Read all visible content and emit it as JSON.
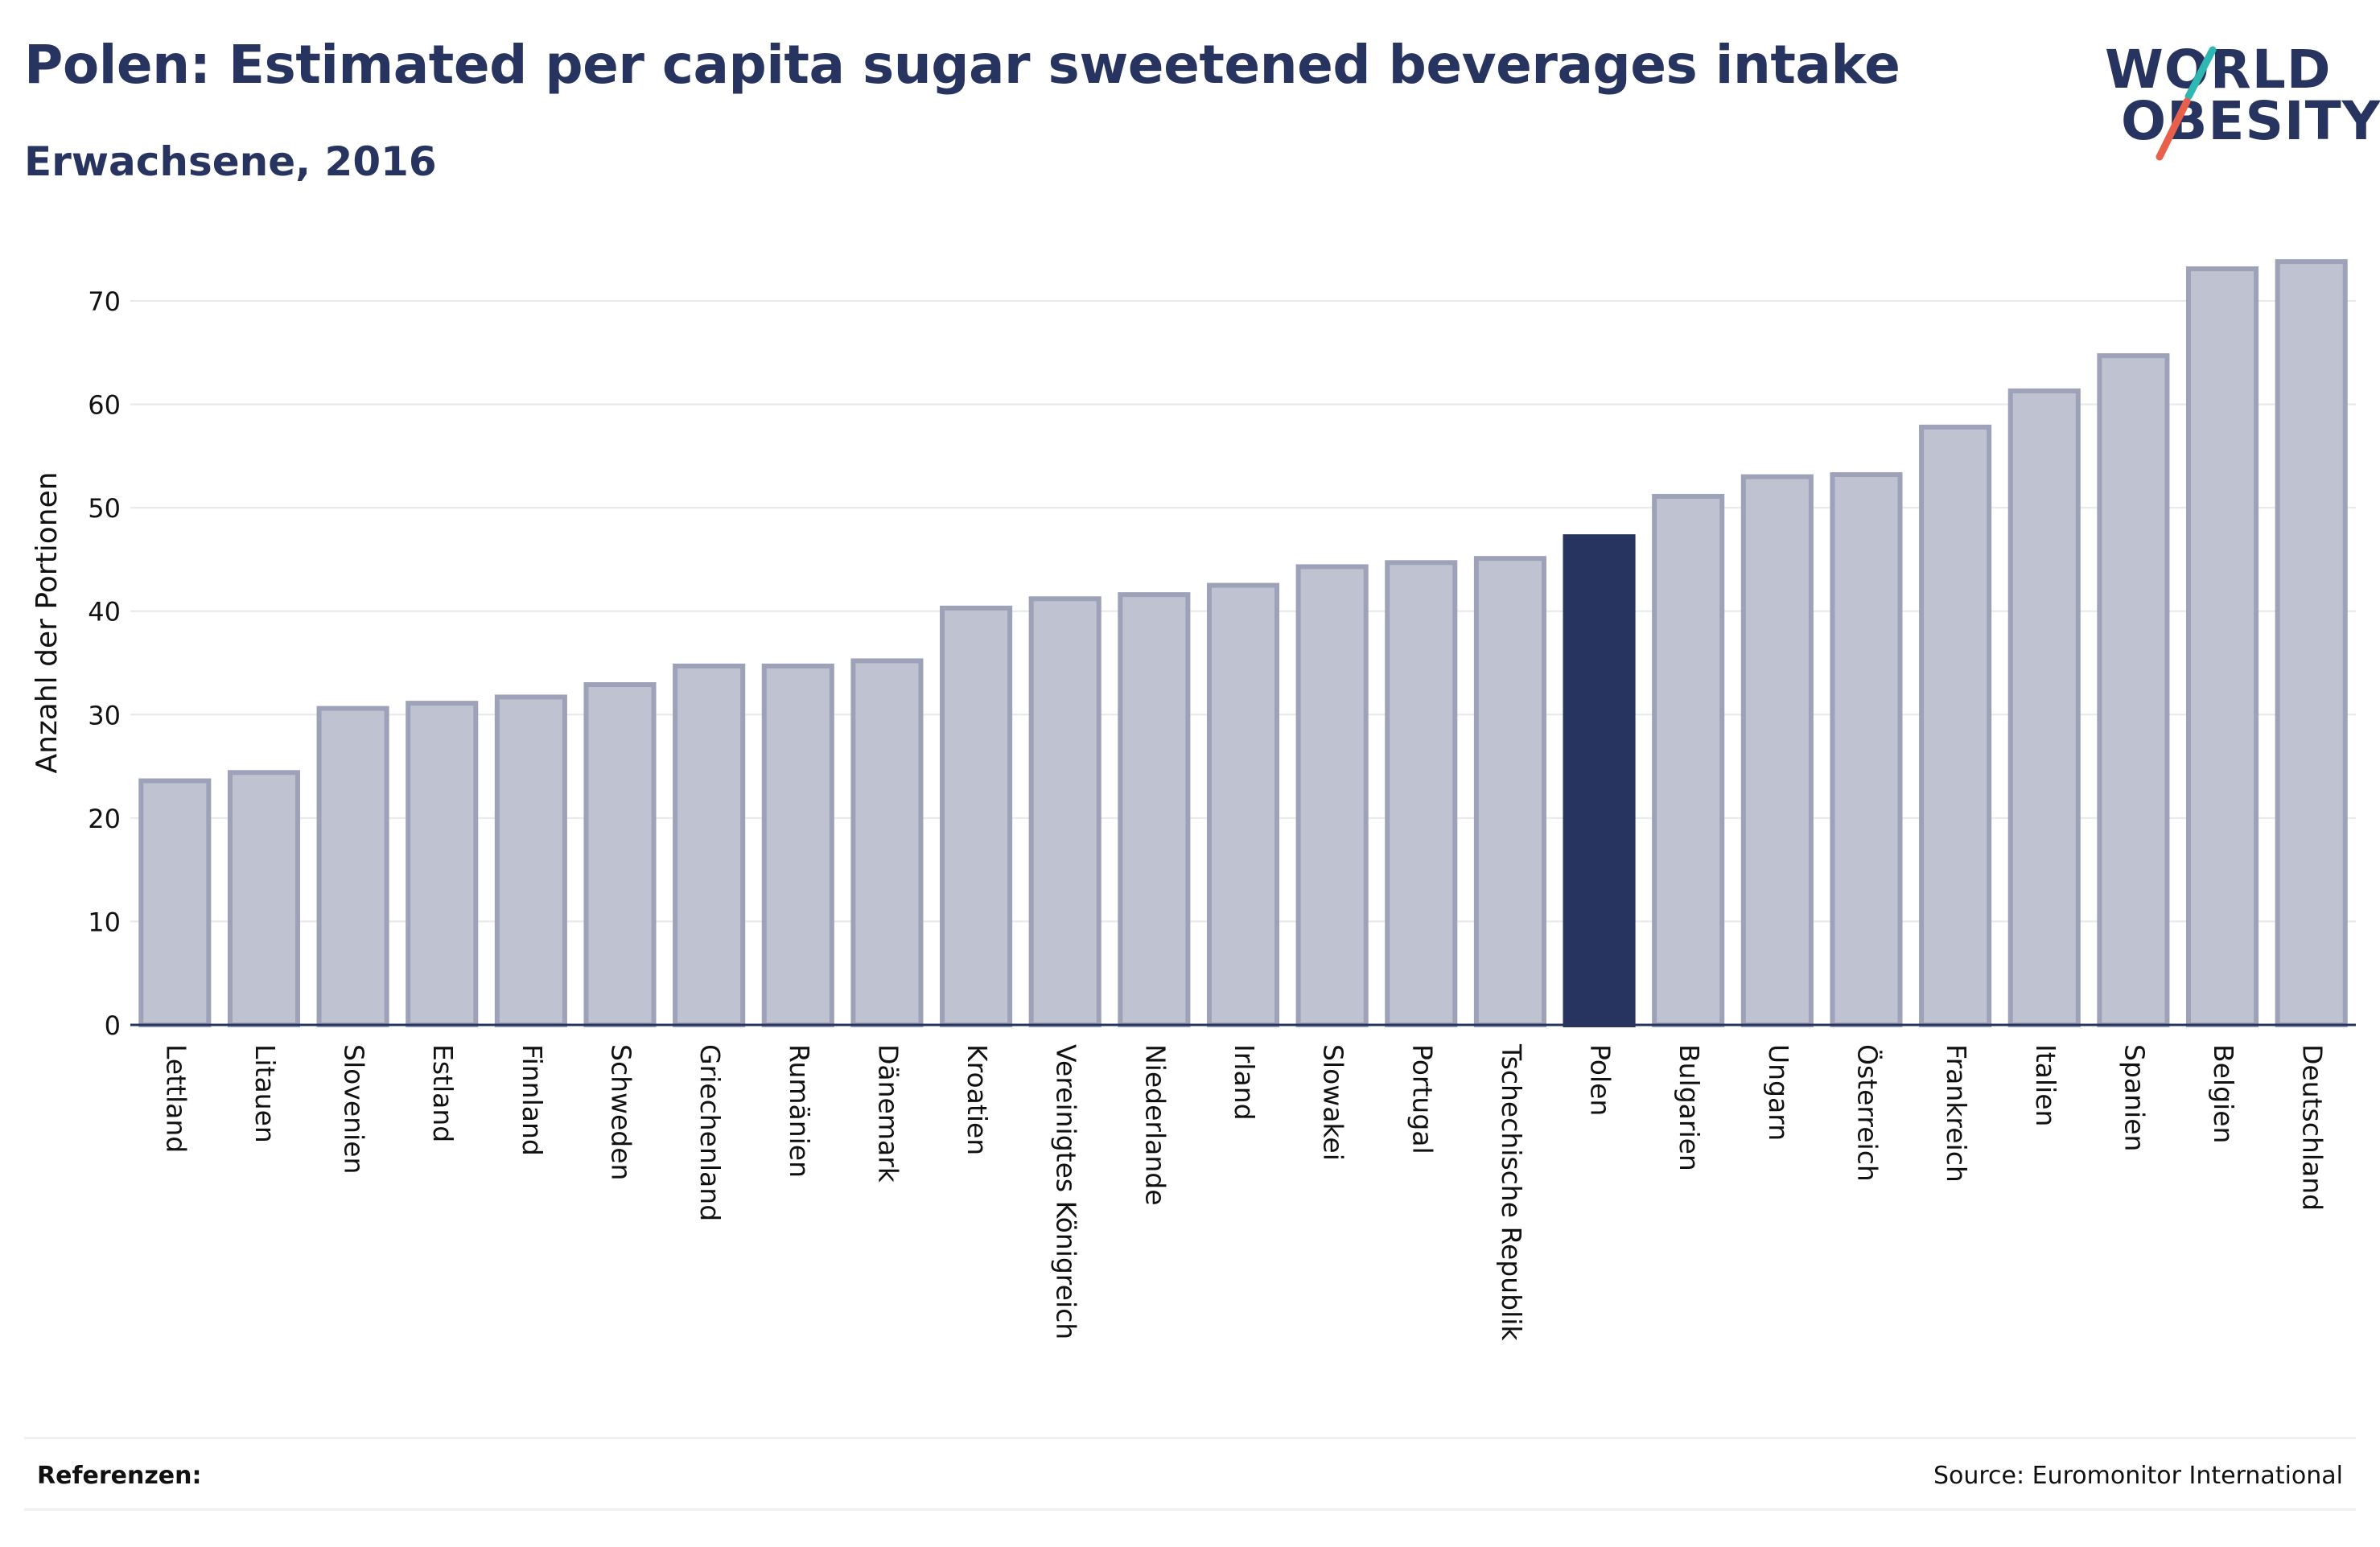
{
  "header": {
    "title": "Polen: Estimated per capita sugar sweetened beverages intake",
    "subtitle": "Erwachsene, 2016"
  },
  "logo": {
    "line1": "WORLD",
    "line2": "OBESITY",
    "accent1": "#2fb7b4",
    "accent2": "#e8604c"
  },
  "footer": {
    "references_label": "Referenzen:",
    "source": "Source: Euromonitor International"
  },
  "colors": {
    "bar": "#bfc2d0",
    "bar_stroke": "#9da2b8",
    "highlight": "#283460",
    "grid": "#e6e8ec",
    "text": "#111111"
  },
  "chart_data": {
    "type": "bar",
    "title": "Polen: Estimated per capita sugar sweetened beverages intake",
    "subtitle": "Erwachsene, 2016",
    "xlabel": "",
    "ylabel": "Anzahl der Portionen",
    "ylim": [
      0,
      75
    ],
    "yticks": [
      0,
      10,
      20,
      30,
      40,
      50,
      60,
      70
    ],
    "grid": true,
    "highlight": "Polen",
    "categories": [
      "Lettland",
      "Litauen",
      "Slovenien",
      "Estland",
      "Finnland",
      "Schweden",
      "Griechenland",
      "Rumänien",
      "Dänemark",
      "Kroatien",
      "Vereinigtes Königreich",
      "Niederlande",
      "Irland",
      "Slowakei",
      "Portugal",
      "Tschechische Republik",
      "Polen",
      "Bulgarien",
      "Ungarn",
      "Österreich",
      "Frankreich",
      "Italien",
      "Spanien",
      "Belgien",
      "Deutschland"
    ],
    "values": [
      23.6,
      24.4,
      30.6,
      31.1,
      31.7,
      32.9,
      34.7,
      34.7,
      35.2,
      40.3,
      41.2,
      41.6,
      42.5,
      44.3,
      44.7,
      45.1,
      47.2,
      51.1,
      53.0,
      53.2,
      57.8,
      61.3,
      64.7,
      73.1,
      73.8
    ]
  }
}
